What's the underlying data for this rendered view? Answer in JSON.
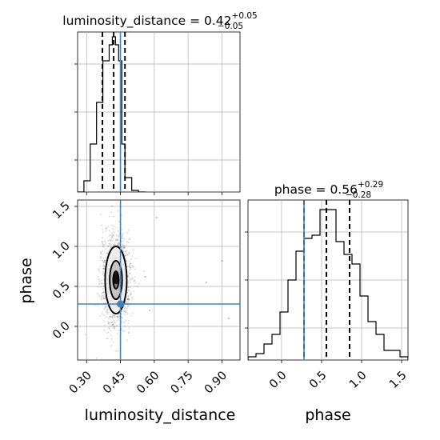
{
  "chart_data": {
    "type": "corner",
    "parameters": [
      {
        "name": "luminosity_distance",
        "axis_label": "luminosity_distance",
        "title_main": "luminosity_distance = 0.42",
        "title_plus": "+0.05",
        "title_minus": "−0.05",
        "median": 0.42,
        "quantiles": [
          0.37,
          0.42,
          0.47
        ],
        "truth": 0.45,
        "range": [
          0.26,
          0.98
        ],
        "ticks": [
          "0.30",
          "0.45",
          "0.60",
          "0.75",
          "0.90"
        ],
        "tick_values": [
          0.3,
          0.45,
          0.6,
          0.75,
          0.9
        ],
        "hist_edges": [
          0.26,
          0.288,
          0.316,
          0.344,
          0.372,
          0.4,
          0.414,
          0.428,
          0.442,
          0.456,
          0.47,
          0.5,
          0.53,
          0.56
        ],
        "hist_counts": [
          0.0,
          0.07,
          0.3,
          0.56,
          0.82,
          0.92,
          0.97,
          0.92,
          0.82,
          0.3,
          0.09,
          0.01,
          0.0
        ]
      },
      {
        "name": "phase",
        "axis_label": "phase",
        "title_main": "phase = 0.56",
        "title_plus": "+0.29",
        "title_minus": "−0.28",
        "median": 0.56,
        "quantiles": [
          0.28,
          0.56,
          0.85
        ],
        "truth": 0.28,
        "range": [
          -0.42,
          1.58
        ],
        "ticks": [
          "0.0",
          "0.5",
          "1.0",
          "1.5"
        ],
        "tick_values": [
          0.0,
          0.5,
          1.0,
          1.5
        ],
        "hist_edges": [
          -0.42,
          -0.32,
          -0.22,
          -0.12,
          -0.02,
          0.08,
          0.18,
          0.28,
          0.38,
          0.48,
          0.58,
          0.68,
          0.78,
          0.88,
          0.98,
          1.08,
          1.18,
          1.28,
          1.38,
          1.48,
          1.58
        ],
        "hist_counts": [
          0.02,
          0.04,
          0.1,
          0.16,
          0.3,
          0.5,
          0.68,
          0.76,
          0.78,
          0.94,
          0.94,
          0.74,
          0.66,
          0.6,
          0.4,
          0.24,
          0.16,
          0.06,
          0.06,
          0.02
        ]
      }
    ],
    "joint": {
      "x_param": "luminosity_distance",
      "y_param": "phase",
      "x_ticks": [
        "0.30",
        "0.45",
        "0.60",
        "0.75",
        "0.90"
      ],
      "x_tick_values": [
        0.3,
        0.45,
        0.6,
        0.75,
        0.9
      ],
      "y_ticks": [
        "0.0",
        "0.5",
        "1.0",
        "1.5"
      ],
      "y_tick_values": [
        0.0,
        0.5,
        1.0,
        1.5
      ],
      "density_center": [
        0.43,
        0.58
      ],
      "density_sigma": [
        0.032,
        0.28
      ],
      "contour_levels": [
        0.39,
        0.86,
        1.5
      ],
      "truth": [
        0.45,
        0.28
      ],
      "outliers": [
        [
          0.56,
          0.62
        ],
        [
          0.9,
          0.82
        ],
        [
          0.93,
          0.1
        ],
        [
          0.83,
          0.55
        ],
        [
          0.61,
          1.36
        ],
        [
          0.58,
          0.2
        ]
      ]
    },
    "colors": {
      "truth": "#4682b4",
      "ink": "#000000",
      "grid": "#b0b0b0"
    },
    "grid": true
  }
}
